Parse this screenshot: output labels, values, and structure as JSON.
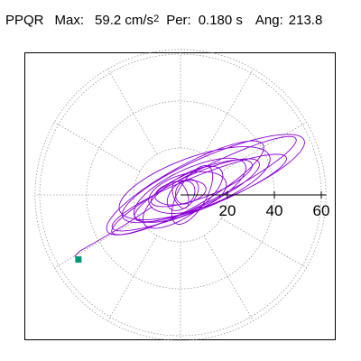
{
  "header": {
    "station": "PPQR",
    "max_label": "Max:",
    "max_value": "59.2 cm/s",
    "max_exp": "2",
    "per_label": "Per:",
    "per_value": "0.180 s",
    "ang_label": "Ang:",
    "ang_value": "213.8"
  },
  "chart_data": {
    "type": "polar",
    "title": "",
    "radial_ticks": [
      20,
      40,
      60
    ],
    "tick_labels": [
      "20",
      "40",
      "60"
    ],
    "r_max": 62,
    "grid": true,
    "grid_angles_deg": [
      0,
      30,
      60,
      90,
      120,
      150,
      180,
      210,
      240,
      270,
      300,
      330
    ],
    "colors": {
      "trace": "#8a00d8",
      "marker": "#009977",
      "grid": "#999999"
    },
    "end_marker": {
      "x": -43.5,
      "y": -27.5
    },
    "orbit_loops": [
      {
        "cx": 10,
        "cy": 4,
        "a": 44,
        "b": 7,
        "rot_deg": 27
      },
      {
        "cx": 14,
        "cy": 7,
        "a": 42,
        "b": 10,
        "rot_deg": 23
      },
      {
        "cx": 8,
        "cy": 1,
        "a": 40,
        "b": 7,
        "rot_deg": 22
      },
      {
        "cx": 2,
        "cy": 3,
        "a": 38,
        "b": 9,
        "rot_deg": 29
      },
      {
        "cx": 6,
        "cy": 5,
        "a": 34,
        "b": 11,
        "rot_deg": 20
      },
      {
        "cx": 7,
        "cy": 2,
        "a": 29,
        "b": 7,
        "rot_deg": 24
      },
      {
        "cx": 4,
        "cy": 2,
        "a": 26,
        "b": 9,
        "rot_deg": 25
      },
      {
        "cx": 9,
        "cy": 5,
        "a": 23,
        "b": 6,
        "rot_deg": 21
      },
      {
        "cx": 1,
        "cy": -1,
        "a": 20,
        "b": 8,
        "rot_deg": 35
      },
      {
        "cx": 3,
        "cy": 1,
        "a": 17,
        "b": 8,
        "rot_deg": 15
      },
      {
        "cx": 5,
        "cy": 0,
        "a": 14,
        "b": 6,
        "rot_deg": 60
      },
      {
        "cx": 0,
        "cy": 1,
        "a": 11,
        "b": 5,
        "rot_deg": 10
      },
      {
        "cx": 1,
        "cy": 0,
        "a": 8,
        "b": 5,
        "rot_deg": 45
      },
      {
        "cx": 0,
        "cy": 0,
        "a": 6,
        "b": 3,
        "rot_deg": 110
      },
      {
        "cx": 2,
        "cy": 1,
        "a": 5,
        "b": 4,
        "rot_deg": 70
      }
    ],
    "tail_points": [
      [
        -12,
        -5
      ],
      [
        -24,
        -13
      ],
      [
        -36,
        -20
      ],
      [
        -43,
        -24
      ],
      [
        -45,
        -26
      ],
      [
        -43.5,
        -27.5
      ]
    ]
  }
}
